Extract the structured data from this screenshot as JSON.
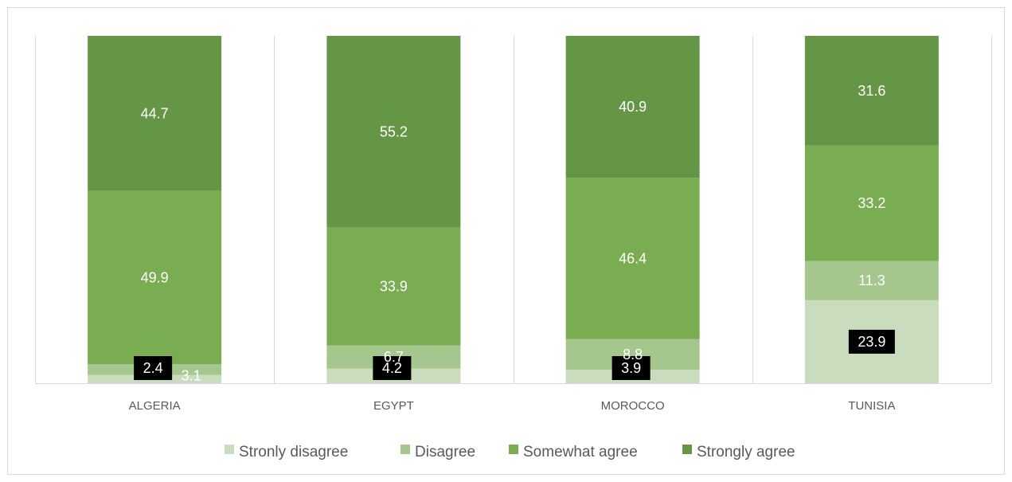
{
  "chart_data": {
    "type": "bar",
    "stacked": true,
    "percent_stacked": true,
    "categories": [
      "ALGERIA",
      "EGYPT",
      "MOROCCO",
      "TUNISIA"
    ],
    "series": [
      {
        "name": "Stronly disagree",
        "values": [
          2.4,
          4.2,
          3.9,
          23.9
        ],
        "color": "#c9dcbd"
      },
      {
        "name": "Disagree",
        "values": [
          3.1,
          6.7,
          8.8,
          11.3
        ],
        "color": "#a5c68d"
      },
      {
        "name": "Somewhat agree",
        "values": [
          49.9,
          33.9,
          46.4,
          33.2
        ],
        "color": "#7aad52"
      },
      {
        "name": "Strongly agree",
        "values": [
          44.7,
          55.2,
          40.9,
          31.6
        ],
        "color": "#659645"
      }
    ],
    "highlighted_labels_series": "Stronly disagree",
    "legend_position": "bottom",
    "grid": false,
    "ylim": [
      0,
      100
    ]
  }
}
